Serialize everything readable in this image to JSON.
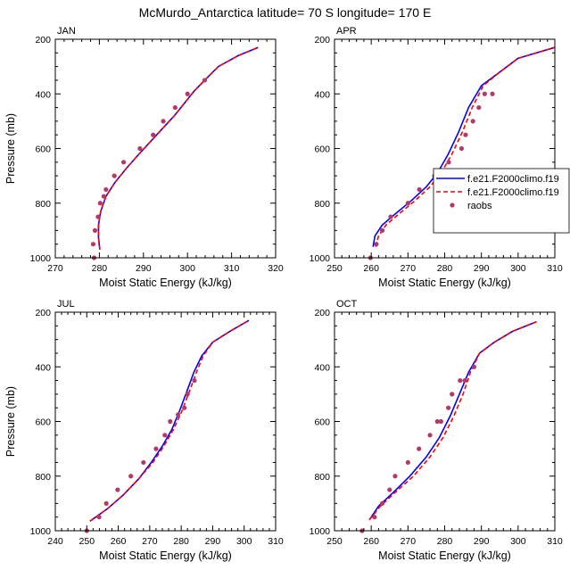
{
  "title": "McMurdo_Antarctica  latitude= 70 S longitude= 170 E",
  "legend": [
    {
      "label": "f.e21.F2000climo.f19",
      "color": "#0000ff",
      "style": "solid"
    },
    {
      "label": "f.e21.F2000climo.f19",
      "color": "#ff0000",
      "style": "dashed"
    },
    {
      "label": "raobs",
      "color": "#b03a6a",
      "style": "dot"
    }
  ],
  "chart_data": [
    {
      "type": "line",
      "panel": "JAN",
      "xlabel": "Moist Static Energy (kJ/kg)",
      "ylabel": "Pressure (mb)",
      "xlim": [
        270,
        320
      ],
      "xticks": [
        270,
        280,
        290,
        300,
        310,
        320
      ],
      "ylim": [
        1000,
        200
      ],
      "yticks": [
        200,
        400,
        600,
        800,
        1000
      ],
      "series": [
        {
          "color": "#0000ff",
          "style": "solid",
          "x": [
            280.1,
            279.8,
            279.8,
            280.3,
            281.5,
            283.5,
            286.0,
            289.0,
            293.0,
            297.0,
            301.5,
            304.5,
            307.0,
            311.5,
            316.0
          ],
          "y": [
            970,
            925,
            880,
            830,
            775,
            725,
            675,
            620,
            550,
            480,
            390,
            340,
            300,
            260,
            230
          ]
        },
        {
          "color": "#ff0000",
          "style": "dashed",
          "x": [
            280.1,
            279.8,
            279.8,
            280.3,
            281.5,
            283.5,
            286.0,
            289.0,
            293.0,
            297.0,
            301.5,
            304.5,
            307.0,
            311.5,
            316.0
          ],
          "y": [
            970,
            925,
            880,
            830,
            775,
            725,
            675,
            620,
            550,
            480,
            390,
            340,
            300,
            260,
            230
          ]
        },
        {
          "color": "#b03a6a",
          "style": "dot",
          "x": [
            278.8,
            278.6,
            279.0,
            279.7,
            280.2,
            281.0,
            281.5,
            283.4,
            285.5,
            289.2,
            292.2,
            294.5,
            297.2,
            300.0,
            303.9
          ],
          "y": [
            1000,
            950,
            900,
            850,
            800,
            775,
            750,
            700,
            650,
            600,
            550,
            500,
            450,
            400,
            350
          ]
        }
      ]
    },
    {
      "type": "line",
      "panel": "APR",
      "xlabel": "Moist Static Energy (kJ/kg)",
      "ylabel": "",
      "xlim": [
        250,
        310
      ],
      "xticks": [
        250,
        260,
        270,
        280,
        290,
        300,
        310
      ],
      "ylim": [
        1000,
        200
      ],
      "yticks": [
        200,
        400,
        600,
        800,
        1000
      ],
      "series": [
        {
          "color": "#0000ff",
          "style": "solid",
          "x": [
            260.5,
            261.0,
            263.0,
            266.5,
            271.0,
            275.0,
            278.0,
            281.0,
            283.8,
            286.5,
            290.0,
            295.0,
            300.0,
            310.0
          ],
          "y": [
            960,
            920,
            880,
            840,
            790,
            740,
            690,
            620,
            540,
            450,
            370,
            320,
            270,
            230
          ]
        },
        {
          "color": "#ff0000",
          "style": "dashed",
          "x": [
            261.2,
            262.0,
            264.0,
            267.5,
            272.0,
            276.0,
            279.0,
            282.0,
            284.8,
            287.5,
            290.5,
            295.0,
            300.0,
            310.0
          ],
          "y": [
            960,
            920,
            880,
            840,
            790,
            740,
            690,
            620,
            540,
            450,
            370,
            320,
            270,
            230
          ]
        },
        {
          "color": "#b03a6a",
          "style": "dot",
          "x": [
            259.8,
            261.4,
            263.0,
            265.3,
            270.0,
            273.1,
            277.2,
            281.1,
            284.6,
            285.7,
            287.7,
            289.3,
            290.9,
            293.0
          ],
          "y": [
            1000,
            950,
            900,
            850,
            800,
            750,
            700,
            650,
            600,
            550,
            500,
            450,
            400,
            400
          ]
        }
      ]
    },
    {
      "type": "line",
      "panel": "JUL",
      "xlabel": "Moist Static Energy (kJ/kg)",
      "ylabel": "Pressure (mb)",
      "xlim": [
        240,
        310
      ],
      "xticks": [
        240,
        250,
        260,
        270,
        280,
        290,
        300,
        310
      ],
      "ylim": [
        1000,
        200
      ],
      "yticks": [
        200,
        400,
        600,
        800,
        1000
      ],
      "series": [
        {
          "color": "#0000ff",
          "style": "solid",
          "x": [
            251.0,
            256.5,
            261.5,
            266.5,
            270.5,
            274.0,
            277.0,
            279.5,
            281.8,
            284.0,
            286.5,
            290.0,
            295.5,
            301.5
          ],
          "y": [
            965,
            920,
            870,
            810,
            750,
            690,
            630,
            560,
            490,
            420,
            360,
            310,
            270,
            230
          ]
        },
        {
          "color": "#ff0000",
          "style": "dashed",
          "x": [
            251.0,
            256.5,
            261.5,
            266.5,
            271.0,
            274.5,
            277.5,
            280.3,
            282.6,
            284.8,
            287.0,
            290.0,
            295.5,
            301.5
          ],
          "y": [
            965,
            920,
            870,
            810,
            750,
            690,
            630,
            560,
            490,
            420,
            360,
            310,
            270,
            230
          ]
        },
        {
          "color": "#b03a6a",
          "style": "dot",
          "x": [
            250.0,
            253.9,
            256.2,
            259.8,
            264.0,
            268.0,
            272.0,
            274.8,
            276.5,
            279.0,
            281.0,
            282.0,
            284.2
          ],
          "y": [
            1000,
            950,
            900,
            850,
            800,
            750,
            700,
            650,
            600,
            575,
            550,
            500,
            450
          ]
        }
      ]
    },
    {
      "type": "line",
      "panel": "OCT",
      "xlabel": "Moist Static Energy (kJ/kg)",
      "ylabel": "",
      "xlim": [
        250,
        310
      ],
      "xticks": [
        250,
        260,
        270,
        280,
        290,
        300,
        310
      ],
      "ylim": [
        1000,
        200
      ],
      "yticks": [
        200,
        400,
        600,
        800,
        1000
      ],
      "series": [
        {
          "color": "#0000ff",
          "style": "solid",
          "x": [
            259.5,
            262.0,
            266.0,
            270.5,
            275.0,
            278.5,
            281.5,
            284.0,
            286.5,
            289.5,
            293.5,
            298.5,
            305.0
          ],
          "y": [
            960,
            910,
            860,
            800,
            730,
            660,
            580,
            500,
            420,
            350,
            310,
            270,
            235
          ]
        },
        {
          "color": "#ff0000",
          "style": "dashed",
          "x": [
            259.5,
            262.5,
            266.5,
            271.5,
            276.0,
            279.5,
            282.5,
            285.0,
            287.0,
            289.5,
            293.5,
            298.5,
            305.0
          ],
          "y": [
            960,
            910,
            860,
            800,
            730,
            660,
            580,
            500,
            420,
            350,
            310,
            270,
            235
          ]
        },
        {
          "color": "#b03a6a",
          "style": "dot",
          "x": [
            257.5,
            260.9,
            263.0,
            265.0,
            266.5,
            270.0,
            273.0,
            276.0,
            278.0,
            279.0,
            281.0,
            282.0,
            284.2,
            285.5,
            288.0
          ],
          "y": [
            1000,
            950,
            900,
            850,
            800,
            750,
            700,
            650,
            600,
            600,
            550,
            500,
            450,
            450,
            400
          ]
        }
      ]
    }
  ]
}
